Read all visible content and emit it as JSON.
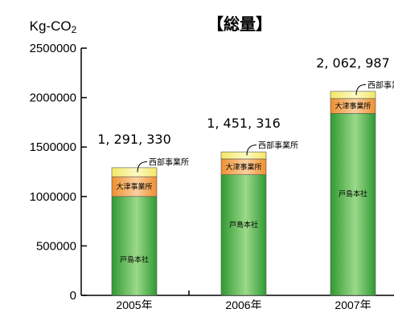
{
  "chart_data": {
    "type": "bar",
    "stacked": true,
    "title": "【総量】",
    "ylabel": "Kg-CO2",
    "ylim": [
      0,
      2500000
    ],
    "yticks": [
      "0",
      "500000",
      "1000000",
      "1500000",
      "2000000",
      "2500000"
    ],
    "categories": [
      "2005年",
      "2006年",
      "2007年"
    ],
    "series": [
      {
        "name": "戸島本社",
        "values": [
          1000000,
          1220000,
          1840000
        ],
        "color": "#3aa63a"
      },
      {
        "name": "大津事業所",
        "values": [
          200000,
          160000,
          150000
        ],
        "color": "#f0a24a"
      },
      {
        "name": "西部事業所",
        "values": [
          91330,
          71316,
          72987
        ],
        "color": "#f7f08c"
      }
    ],
    "totals": [
      "1, 291, 330",
      "1, 451, 316",
      "2, 062, 987"
    ],
    "grid": false,
    "legend": "none"
  }
}
